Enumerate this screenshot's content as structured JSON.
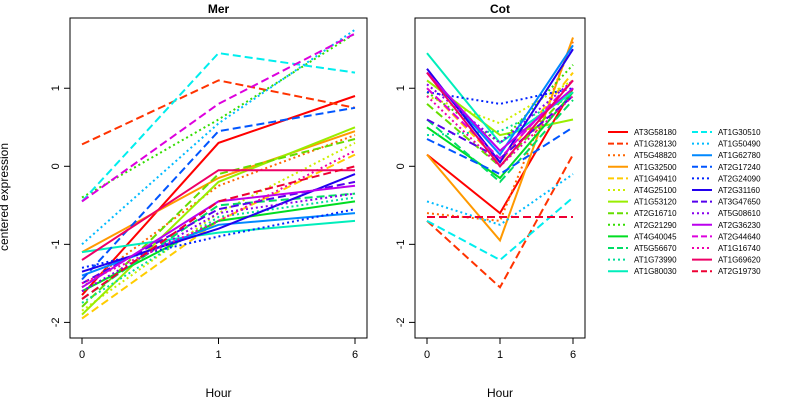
{
  "chart_data": {
    "type": "line",
    "ylabel": "centered expression",
    "xlabel": "Hour",
    "x_ticks": [
      "0",
      "1",
      "6"
    ],
    "y_ticks": [
      -2,
      -1,
      0,
      1
    ],
    "ylim": [
      -2.2,
      1.9
    ],
    "legend_position": "right",
    "series": [
      {
        "name": "AT3G58180",
        "color": "#ff0000",
        "dash": "solid"
      },
      {
        "name": "AT1G28130",
        "color": "#ff3300",
        "dash": "dashed"
      },
      {
        "name": "AT5G48820",
        "color": "#ff6600",
        "dash": "dotted"
      },
      {
        "name": "AT1G32500",
        "color": "#ff9900",
        "dash": "solid"
      },
      {
        "name": "AT1G49410",
        "color": "#ffcc00",
        "dash": "dashed"
      },
      {
        "name": "AT4G25100",
        "color": "#ccee00",
        "dash": "dotted"
      },
      {
        "name": "AT1G53120",
        "color": "#99ee00",
        "dash": "solid"
      },
      {
        "name": "AT2G16710",
        "color": "#66dd00",
        "dash": "dashed"
      },
      {
        "name": "AT2G21290",
        "color": "#33dd00",
        "dash": "dotted"
      },
      {
        "name": "AT4G40045",
        "color": "#00dd22",
        "dash": "solid"
      },
      {
        "name": "AT5G56670",
        "color": "#00dd66",
        "dash": "dashed"
      },
      {
        "name": "AT1G73990",
        "color": "#00dd99",
        "dash": "dotted"
      },
      {
        "name": "AT1G80030",
        "color": "#00eebb",
        "dash": "solid"
      },
      {
        "name": "AT1G30510",
        "color": "#00eeee",
        "dash": "dashed"
      },
      {
        "name": "AT1G50490",
        "color": "#00bbff",
        "dash": "dotted"
      },
      {
        "name": "AT1G62780",
        "color": "#0088ff",
        "dash": "solid"
      },
      {
        "name": "AT2G17240",
        "color": "#0055ff",
        "dash": "dashed"
      },
      {
        "name": "AT2G24090",
        "color": "#0022ff",
        "dash": "dotted"
      },
      {
        "name": "AT2G31160",
        "color": "#2200ee",
        "dash": "solid"
      },
      {
        "name": "AT3G47650",
        "color": "#5500ee",
        "dash": "dashed"
      },
      {
        "name": "AT5G08610",
        "color": "#8800ee",
        "dash": "dotted"
      },
      {
        "name": "AT2G36230",
        "color": "#bb00ee",
        "dash": "solid"
      },
      {
        "name": "AT2G44640",
        "color": "#dd00dd",
        "dash": "dashed"
      },
      {
        "name": "AT1G16740",
        "color": "#ee00aa",
        "dash": "dotted"
      },
      {
        "name": "AT1G69620",
        "color": "#ee0066",
        "dash": "solid"
      },
      {
        "name": "AT2G19730",
        "color": "#ee0033",
        "dash": "dashed"
      }
    ],
    "panels": [
      {
        "title": "Mer",
        "values": [
          [
            -1.65,
            0.3,
            0.9
          ],
          [
            0.28,
            1.1,
            0.75
          ],
          [
            -1.55,
            -0.25,
            0.4
          ],
          [
            -1.1,
            -0.15,
            0.45
          ],
          [
            -1.95,
            -0.7,
            0.15
          ],
          [
            -1.85,
            -0.6,
            0.3
          ],
          [
            -1.9,
            -0.2,
            0.5
          ],
          [
            -1.8,
            -0.1,
            0.35
          ],
          [
            -0.4,
            0.6,
            1.7
          ],
          [
            -1.6,
            -0.7,
            -0.45
          ],
          [
            -1.7,
            -0.5,
            -0.35
          ],
          [
            -1.75,
            -0.65,
            -0.4
          ],
          [
            -1.1,
            -0.85,
            -0.7
          ],
          [
            -0.45,
            1.45,
            1.2
          ],
          [
            -1.0,
            0.55,
            1.75
          ],
          [
            -1.4,
            -0.75,
            -0.6
          ],
          [
            -1.45,
            0.45,
            0.75
          ],
          [
            -1.3,
            -0.9,
            -0.55
          ],
          [
            -1.35,
            -0.8,
            -0.1
          ],
          [
            -1.5,
            -0.55,
            -0.2
          ],
          [
            -1.6,
            -0.6,
            -0.35
          ],
          [
            -1.55,
            -0.45,
            -0.25
          ],
          [
            -0.45,
            0.8,
            1.7
          ],
          [
            -1.5,
            -0.7,
            0.2
          ],
          [
            -1.2,
            -0.05,
            -0.05
          ],
          [
            -1.7,
            -0.45,
            0.0
          ]
        ]
      },
      {
        "title": "Cot",
        "values": [
          [
            0.15,
            -0.6,
            1.0
          ],
          [
            -0.7,
            -1.55,
            0.15
          ],
          [
            -0.6,
            -0.7,
            1.6
          ],
          [
            0.15,
            -0.95,
            1.65
          ],
          [
            1.0,
            0.05,
            1.2
          ],
          [
            0.9,
            0.55,
            1.1
          ],
          [
            1.1,
            0.4,
            0.6
          ],
          [
            0.8,
            0.0,
            1.0
          ],
          [
            0.95,
            0.3,
            1.3
          ],
          [
            0.5,
            -0.15,
            0.95
          ],
          [
            0.6,
            -0.2,
            0.85
          ],
          [
            0.4,
            0.45,
            0.9
          ],
          [
            1.45,
            0.3,
            0.95
          ],
          [
            -0.7,
            -1.2,
            -0.4
          ],
          [
            -0.45,
            -0.75,
            -0.1
          ],
          [
            1.2,
            0.15,
            1.55
          ],
          [
            0.35,
            -0.1,
            0.5
          ],
          [
            0.95,
            0.8,
            1.0
          ],
          [
            1.25,
            0.05,
            1.5
          ],
          [
            0.6,
            0.1,
            0.9
          ],
          [
            1.05,
            0.3,
            1.1
          ],
          [
            1.2,
            0.2,
            1.0
          ],
          [
            1.0,
            0.1,
            1.1
          ],
          [
            0.9,
            0.0,
            0.9
          ],
          [
            1.2,
            0.0,
            1.1
          ],
          [
            -0.65,
            -0.65,
            -0.65
          ]
        ]
      }
    ]
  }
}
